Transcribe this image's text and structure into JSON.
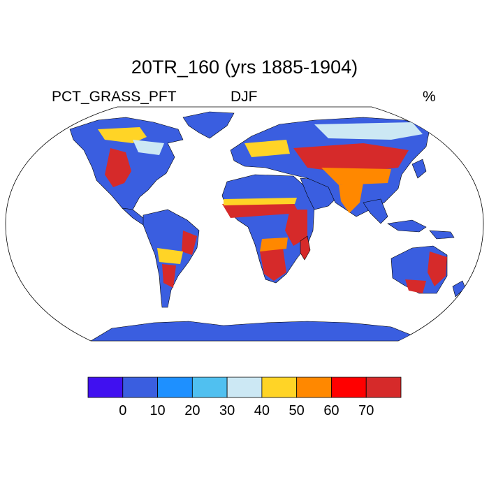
{
  "title": "20TR_160 (yrs 1885-1904)",
  "variable": "PCT_GRASS_PFT",
  "season": "DJF",
  "units": "%",
  "map": {
    "projection": "Robinson",
    "field": "grass plant functional type percentage",
    "high_regions": [
      "Great Plains",
      "eastern South America",
      "Sahel",
      "East Africa",
      "southern Africa",
      "Central Asia",
      "eastern Australia"
    ],
    "low_regions": [
      "Sahara",
      "Arabia",
      "Greenland",
      "Antarctica",
      "tropical forests"
    ]
  },
  "colorbar": {
    "colors": [
      "#4010f0",
      "#3a5ee0",
      "#1e90ff",
      "#50c0f0",
      "#cce8f4",
      "#ffd426",
      "#ff8800",
      "#ff0000",
      "#d62a2a"
    ],
    "labels": [
      "0",
      "10",
      "20",
      "30",
      "40",
      "50",
      "60",
      "70"
    ]
  }
}
